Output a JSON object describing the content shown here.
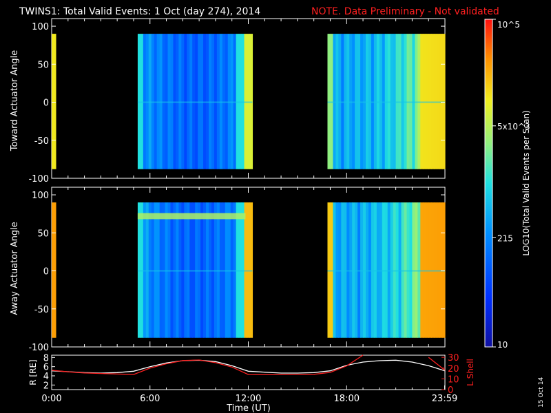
{
  "title": {
    "main": "TWINS1: Total Valid Events:  1 Oct (day 274), 2014",
    "note": "NOTE. Data Preliminary - Not validated"
  },
  "colors": {
    "background": "#000000",
    "note": "#ff0000",
    "axis": "#ffffff",
    "r_line": "#ffffff",
    "lshell_line": "#ff2020"
  },
  "colorbar": {
    "label": "LOG10(Total Valid Events per Scan)",
    "tick_labels": [
      "10",
      "215",
      "5x10^3",
      "10^5"
    ],
    "scale": "log",
    "range": [
      10,
      100000
    ],
    "colormap": "rainbow (blue-cyan-yellow-red)"
  },
  "footer": {
    "date_stamp": "15 Oct 14"
  },
  "chart_data": [
    {
      "type": "heatmap",
      "panel": "toward",
      "ylabel": "Toward Actuator Angle",
      "xlim": [
        "00:00",
        "24:00"
      ],
      "ylim": [
        -100,
        110
      ],
      "yticks": [
        "100",
        "50",
        "0",
        "-50",
        "-100"
      ],
      "data_blocks": [
        {
          "start": "00:00",
          "end": "00:15",
          "level": "yellow"
        },
        {
          "start": "05:15",
          "end": "12:15",
          "level": "blue (~100-1000)"
        },
        {
          "start": "16:50",
          "end": "24:00",
          "level": "blue to yellow (~100-10000)"
        }
      ],
      "angle_range": [
        -88,
        90
      ]
    },
    {
      "type": "heatmap",
      "panel": "away",
      "ylabel": "Away Actuator Angle",
      "xlim": [
        "00:00",
        "24:00"
      ],
      "ylim": [
        -100,
        110
      ],
      "yticks": [
        "100",
        "50",
        "0",
        "-50",
        "-100"
      ],
      "data_blocks": [
        {
          "start": "00:00",
          "end": "00:15",
          "level": "orange"
        },
        {
          "start": "05:15",
          "end": "12:15",
          "level": "blue with yellow band near 75°"
        },
        {
          "start": "16:50",
          "end": "24:00",
          "level": "blue to orange"
        }
      ],
      "angle_range": [
        -88,
        90
      ]
    },
    {
      "type": "line",
      "panel": "orbit",
      "ylabel_left": "R [RE]",
      "ylabel_right": "L Shell",
      "xlabel": "Time (UT)",
      "x_tick_labels": [
        "0:00",
        "6:00",
        "12:00",
        "18:00",
        "23:59"
      ],
      "yticks_left": [
        "8",
        "6",
        "4",
        "2"
      ],
      "yticks_right": [
        "30",
        "20",
        "10",
        "0"
      ],
      "ylim_left": [
        1,
        8.5
      ],
      "ylim_right": [
        0,
        32
      ],
      "series": [
        {
          "name": "R [RE]",
          "x": [
            0,
            1,
            2,
            3,
            4,
            5,
            6,
            7,
            8,
            9,
            10,
            11,
            12,
            13,
            14,
            15,
            16,
            17,
            18,
            19,
            20,
            21,
            22,
            23,
            24
          ],
          "y": [
            5.1,
            4.9,
            4.7,
            4.6,
            4.7,
            5.0,
            6.0,
            6.8,
            7.3,
            7.4,
            7.1,
            6.2,
            5.0,
            4.8,
            4.6,
            4.6,
            4.7,
            5.1,
            6.3,
            7.0,
            7.3,
            7.4,
            7.0,
            6.2,
            5.1
          ]
        },
        {
          "name": "L Shell",
          "x": [
            0,
            1,
            2,
            3,
            4,
            5,
            6,
            7,
            8,
            9,
            10,
            11,
            12,
            13,
            14,
            15,
            16,
            17,
            18,
            19,
            20,
            21,
            22,
            23,
            24
          ],
          "y": [
            18,
            16.5,
            15.5,
            15,
            14.5,
            14,
            20,
            24,
            27,
            27.5,
            25,
            21,
            14,
            13.8,
            13.8,
            14,
            14.2,
            16,
            22,
            32,
            null,
            null,
            null,
            30,
            18
          ]
        }
      ]
    }
  ]
}
